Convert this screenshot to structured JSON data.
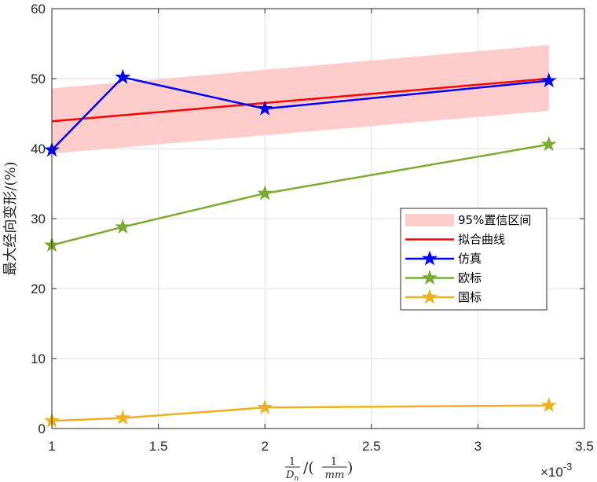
{
  "chart_data": {
    "type": "line",
    "xlabel": {
      "num1": "1",
      "den1": "D",
      "den1_sub": "n",
      "mid": "/(",
      "num2": "1",
      "den2": "mm",
      "end": ")"
    },
    "ylabel": "最大经向变形/(%)",
    "x_multiplier": "×10",
    "x_multiplier_exp": "-3",
    "xlim": [
      1,
      3.5
    ],
    "ylim": [
      0,
      60
    ],
    "xticks": [
      "1",
      "1.5",
      "2",
      "2.5",
      "3",
      "3.5"
    ],
    "yticks": [
      "0",
      "10",
      "20",
      "30",
      "40",
      "50",
      "60"
    ],
    "xtick_values": [
      1,
      1.5,
      2,
      2.5,
      3,
      3.5
    ],
    "ytick_values": [
      0,
      10,
      20,
      30,
      40,
      50,
      60
    ],
    "grid": true,
    "legend_position": "right",
    "confidence_band": {
      "name": "95%置信区间",
      "color": "#ffcccc",
      "x": [
        1,
        3.333
      ],
      "lower": [
        39.3,
        45.4
      ],
      "upper": [
        48.6,
        54.8
      ]
    },
    "fit_line": {
      "name": "拟合曲线",
      "color": "#ff0000",
      "x": [
        1,
        3.333
      ],
      "y": [
        43.9,
        50.0
      ]
    },
    "series": [
      {
        "name": "仿真",
        "color": "#0000ff",
        "x": [
          1,
          1.333,
          2,
          3.333
        ],
        "values": [
          39.8,
          50.2,
          45.7,
          49.7
        ]
      },
      {
        "name": "欧标",
        "color": "#77ac30",
        "x": [
          1,
          1.333,
          2,
          3.333
        ],
        "values": [
          26.2,
          28.8,
          33.6,
          40.6
        ]
      },
      {
        "name": "国标",
        "color": "#edb120",
        "x": [
          1,
          1.333,
          2,
          3.333
        ],
        "values": [
          1.1,
          1.5,
          3.0,
          3.3
        ]
      }
    ]
  }
}
